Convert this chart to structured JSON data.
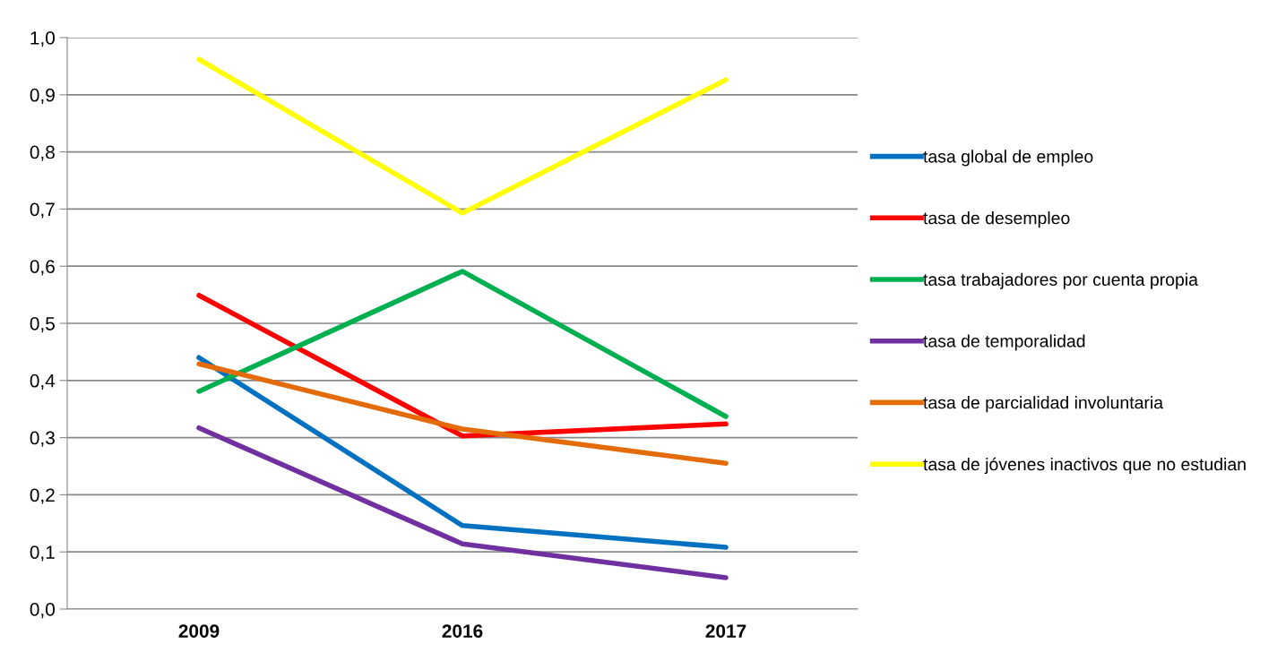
{
  "chart_data": {
    "type": "line",
    "categories": [
      "2009",
      "2016",
      "2017"
    ],
    "series": [
      {
        "name": "tasa global de empleo",
        "color": "#0070c0",
        "values": [
          0.44,
          0.146,
          0.108
        ]
      },
      {
        "name": "tasa de desempleo",
        "color": "#ff0000",
        "values": [
          0.549,
          0.303,
          0.324
        ]
      },
      {
        "name": "tasa trabajadores por cuenta propia",
        "color": "#00b050",
        "values": [
          0.381,
          0.591,
          0.337
        ]
      },
      {
        "name": "tasa de temporalidad",
        "color": "#7030a0",
        "values": [
          0.317,
          0.114,
          0.055
        ]
      },
      {
        "name": "tasa de parcialidad involuntaria",
        "color": "#e36c09",
        "values": [
          0.429,
          0.315,
          0.255
        ]
      },
      {
        "name": "tasa de jóvenes inactivos que no estudian",
        "color": "#ffff00",
        "values": [
          0.962,
          0.693,
          0.926
        ]
      }
    ],
    "ylim": [
      0,
      1.0
    ],
    "yticks": [
      {
        "value": 0,
        "label": "0,0"
      },
      {
        "value": 0.1,
        "label": "0,1"
      },
      {
        "value": 0.2,
        "label": "0,2"
      },
      {
        "value": 0.3,
        "label": "0,3"
      },
      {
        "value": 0.4,
        "label": "0,4"
      },
      {
        "value": 0.5,
        "label": "0,5"
      },
      {
        "value": 0.6,
        "label": "0,6"
      },
      {
        "value": 0.7,
        "label": "0,7"
      },
      {
        "value": 0.8,
        "label": "0,8"
      },
      {
        "value": 0.9,
        "label": "0,9"
      },
      {
        "value": 1.0,
        "label": "1,0"
      }
    ],
    "grid": "y",
    "legend": "right",
    "marker": "none",
    "line_style": "solid"
  }
}
